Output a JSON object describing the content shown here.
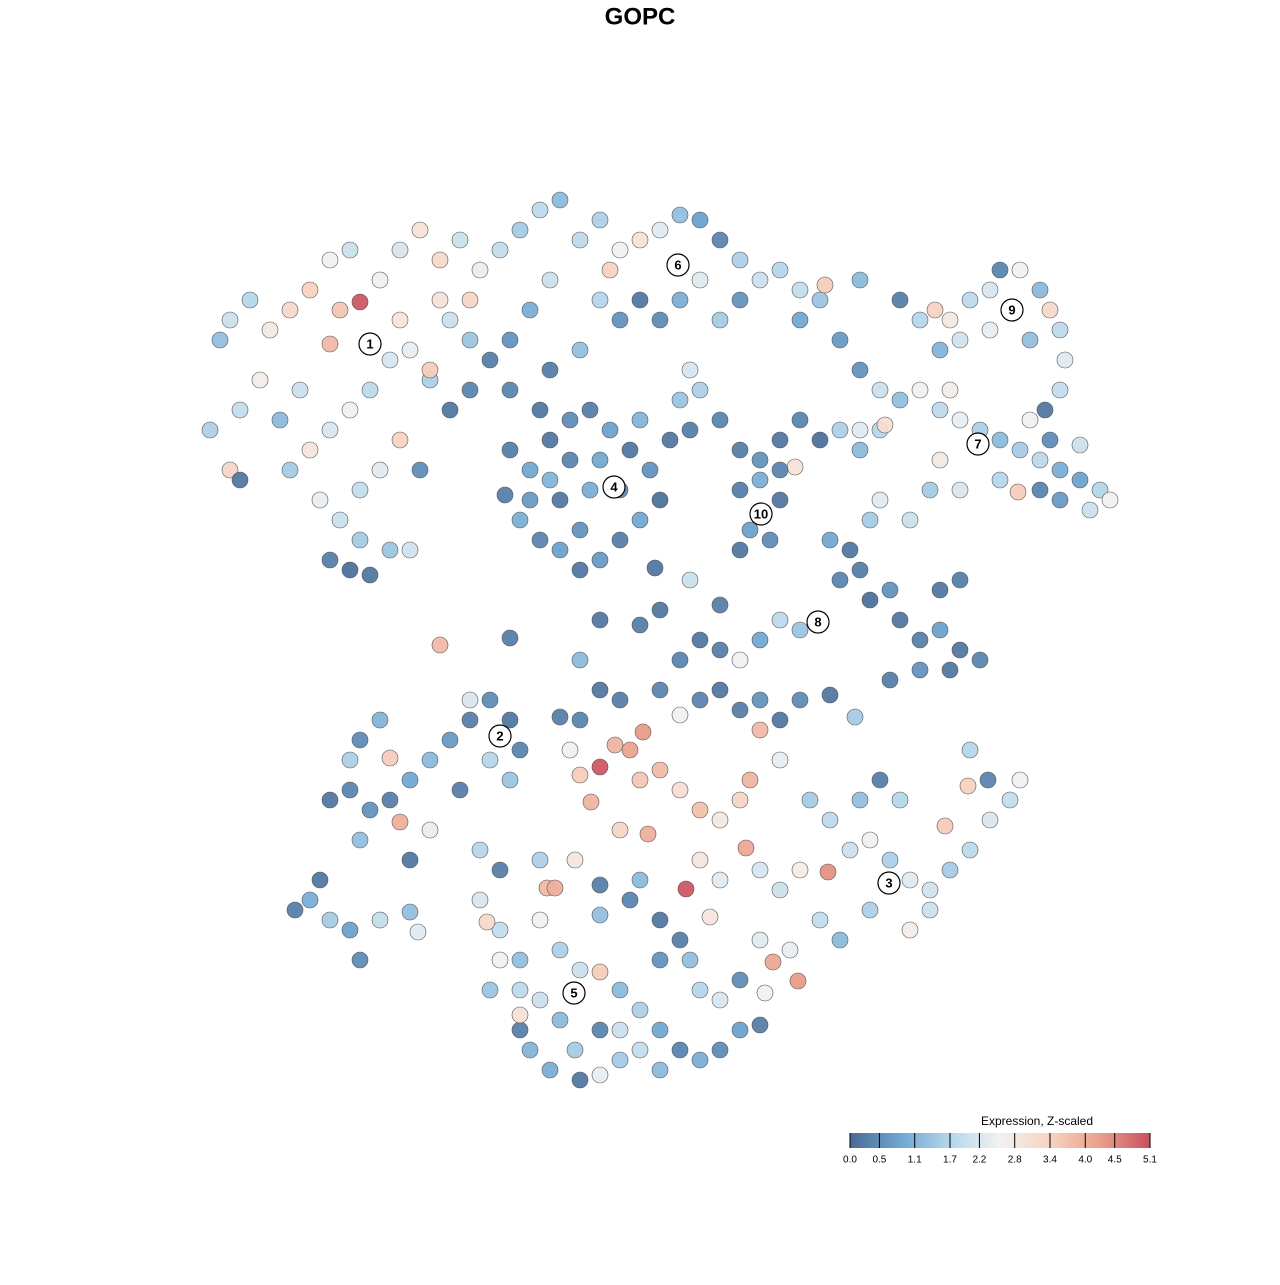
{
  "chart_data": {
    "type": "scatter",
    "title": "GOPC",
    "xlim": [
      0,
      1280
    ],
    "ylim": [
      1280,
      0
    ],
    "x": [
      220,
      230,
      250,
      270,
      290,
      310,
      330,
      350,
      360,
      340,
      330,
      380,
      400,
      420,
      440,
      460,
      480,
      500,
      520,
      540,
      560,
      550,
      530,
      510,
      490,
      470,
      450,
      430,
      410,
      400,
      390,
      370,
      350,
      330,
      310,
      290,
      280,
      300,
      260,
      240,
      210,
      230,
      240,
      320,
      340,
      360,
      330,
      350,
      370,
      390,
      410,
      400,
      420,
      380,
      360,
      450,
      470,
      440,
      470,
      430,
      580,
      600,
      620,
      640,
      660,
      680,
      700,
      720,
      740,
      760,
      780,
      800,
      820,
      825,
      700,
      680,
      660,
      640,
      620,
      600,
      610,
      720,
      740,
      800,
      840,
      690,
      700,
      680,
      580,
      550,
      540,
      510,
      900,
      920,
      935,
      950,
      970,
      990,
      1000,
      1020,
      1040,
      1050,
      1060,
      1030,
      990,
      960,
      940,
      1065,
      1060,
      1045,
      860,
      860,
      880,
      900,
      920,
      940,
      950,
      960,
      980,
      1000,
      1020,
      1040,
      1060,
      1080,
      1100,
      1110,
      1090,
      1060,
      1040,
      1018,
      1000,
      1030,
      1050,
      1080,
      880,
      860,
      840,
      885,
      940,
      860,
      510,
      530,
      550,
      570,
      590,
      610,
      630,
      650,
      660,
      640,
      620,
      600,
      580,
      560,
      540,
      520,
      505,
      530,
      560,
      590,
      620,
      600,
      570,
      550,
      580,
      640,
      670,
      690,
      720,
      740,
      760,
      780,
      800,
      795,
      820,
      740,
      760,
      780,
      750,
      770,
      740,
      780,
      830,
      850,
      860,
      840,
      870,
      890,
      900,
      920,
      940,
      960,
      980,
      950,
      920,
      890,
      940,
      960,
      870,
      880,
      910,
      930,
      960,
      800,
      780,
      760,
      740,
      720,
      700,
      680,
      440,
      510,
      580,
      600,
      640,
      690,
      720,
      660,
      655,
      330,
      350,
      370,
      390,
      410,
      430,
      450,
      470,
      490,
      510,
      520,
      510,
      490,
      380,
      360,
      350,
      390,
      400,
      430,
      410,
      360,
      460,
      480,
      470,
      295,
      310,
      330,
      350,
      360,
      380,
      410,
      418,
      320,
      570,
      580,
      600,
      615,
      630,
      640,
      660,
      680,
      700,
      720,
      740,
      750,
      760,
      780,
      643,
      591,
      620,
      648,
      686,
      700,
      720,
      746,
      760,
      780,
      800,
      828,
      850,
      870,
      890,
      910,
      930,
      950,
      970,
      990,
      1010,
      1020,
      968,
      945,
      900,
      880,
      860,
      830,
      810,
      820,
      798,
      773,
      790,
      760,
      840,
      870,
      910,
      930,
      700,
      720,
      740,
      760,
      780,
      800,
      830,
      855,
      620,
      660,
      680,
      600,
      580,
      560,
      970,
      988,
      480,
      500,
      520,
      540,
      547,
      555,
      560,
      580,
      600,
      620,
      640,
      660,
      680,
      700,
      720,
      740,
      760,
      575,
      560,
      540,
      520,
      530,
      550,
      580,
      600,
      620,
      640,
      660,
      600,
      620,
      500,
      520,
      490,
      600,
      630,
      660,
      680,
      690,
      700,
      720,
      740,
      765,
      520,
      487,
      500,
      540,
      575,
      600,
      640,
      710,
      660
    ],
    "y": [
      340,
      320,
      300,
      330,
      310,
      290,
      260,
      250,
      302,
      310,
      344,
      280,
      250,
      230,
      260,
      240,
      270,
      250,
      230,
      210,
      200,
      280,
      310,
      340,
      360,
      390,
      410,
      380,
      350,
      320,
      360,
      390,
      410,
      430,
      450,
      470,
      420,
      390,
      380,
      410,
      430,
      470,
      480,
      500,
      520,
      540,
      560,
      570,
      575,
      550,
      550,
      440,
      470,
      470,
      490,
      320,
      300,
      300,
      340,
      370,
      240,
      220,
      250,
      240,
      230,
      215,
      220,
      240,
      260,
      280,
      270,
      290,
      300,
      285,
      280,
      300,
      320,
      300,
      320,
      300,
      270,
      320,
      300,
      320,
      340,
      370,
      390,
      400,
      350,
      370,
      410,
      390,
      300,
      320,
      310,
      320,
      300,
      290,
      270,
      270,
      290,
      310,
      330,
      340,
      330,
      340,
      350,
      360,
      390,
      410,
      280,
      370,
      390,
      400,
      390,
      410,
      390,
      420,
      430,
      440,
      450,
      460,
      470,
      480,
      490,
      500,
      510,
      500,
      490,
      492,
      480,
      420,
      440,
      445,
      430,
      430,
      430,
      425,
      460,
      450,
      450,
      470,
      440,
      420,
      410,
      430,
      450,
      470,
      500,
      520,
      540,
      560,
      570,
      550,
      540,
      520,
      495,
      500,
      500,
      490,
      490,
      460,
      460,
      480,
      530,
      420,
      440,
      430,
      420,
      450,
      460,
      440,
      420,
      467,
      440,
      490,
      480,
      500,
      530,
      540,
      550,
      470,
      540,
      550,
      570,
      580,
      600,
      590,
      620,
      640,
      630,
      650,
      660,
      670,
      670,
      680,
      590,
      580,
      520,
      500,
      520,
      490,
      490,
      630,
      620,
      640,
      660,
      650,
      640,
      660,
      645,
      638,
      660,
      620,
      625,
      580,
      605,
      610,
      568,
      800,
      790,
      810,
      800,
      780,
      760,
      740,
      720,
      700,
      720,
      750,
      780,
      760,
      720,
      740,
      760,
      758,
      822,
      830,
      860,
      840,
      790,
      850,
      700,
      910,
      900,
      920,
      930,
      960,
      920,
      912,
      932,
      880,
      750,
      775,
      767,
      745,
      750,
      780,
      770,
      790,
      810,
      820,
      800,
      780,
      730,
      760,
      732,
      802,
      830,
      834,
      889,
      860,
      880,
      848,
      870,
      890,
      870,
      872,
      850,
      840,
      860,
      880,
      890,
      870,
      850,
      820,
      800,
      780,
      786,
      826,
      800,
      780,
      800,
      820,
      800,
      920,
      981,
      962,
      950,
      940,
      940,
      910,
      930,
      910,
      700,
      690,
      710,
      700,
      720,
      700,
      695,
      717,
      700,
      690,
      715,
      690,
      720,
      717,
      750,
      780,
      900,
      930,
      960,
      920,
      888,
      888,
      950,
      970,
      972,
      990,
      1010,
      1030,
      1050,
      1060,
      1050,
      1030,
      1025,
      1050,
      1020,
      1000,
      1030,
      1050,
      1070,
      1080,
      1075,
      1060,
      1050,
      1070,
      1030,
      1030,
      960,
      990,
      990,
      915,
      900,
      920,
      940,
      960,
      990,
      1000,
      980,
      993,
      1015,
      922,
      870,
      860,
      860,
      885,
      880,
      917,
      960
    ],
    "values": [
      1.3,
      2.0,
      1.7,
      2.8,
      3.2,
      3.4,
      2.5,
      2.0,
      5.0,
      3.6,
      3.8,
      2.6,
      2.2,
      3.0,
      3.2,
      2.0,
      2.4,
      1.9,
      1.5,
      1.8,
      1.2,
      2.0,
      1.0,
      0.6,
      0.3,
      0.4,
      0.2,
      1.6,
      2.4,
      2.9,
      2.2,
      1.8,
      2.6,
      2.2,
      2.9,
      1.5,
      1.2,
      2.0,
      2.7,
      1.9,
      1.6,
      3.3,
      0.2,
      2.4,
      2.0,
      1.5,
      0.3,
      0.1,
      0.2,
      1.4,
      2.1,
      3.4,
      0.5,
      2.3,
      1.9,
      2.0,
      3.3,
      3.0,
      1.4,
      3.5,
      1.8,
      1.6,
      2.6,
      3.0,
      2.3,
      1.3,
      0.8,
      0.4,
      1.6,
      2.0,
      1.7,
      1.9,
      1.4,
      3.5,
      2.3,
      1.0,
      0.5,
      0.2,
      0.6,
      1.7,
      3.4,
      1.5,
      0.6,
      0.9,
      0.7,
      2.2,
      1.6,
      1.4,
      1.3,
      0.3,
      0.2,
      0.4,
      0.3,
      1.7,
      3.4,
      2.8,
      1.8,
      2.2,
      0.4,
      2.5,
      1.2,
      3.2,
      1.8,
      1.3,
      2.4,
      2.1,
      1.1,
      2.3,
      1.9,
      0.2,
      1.2,
      0.6,
      2.0,
      1.3,
      2.6,
      1.8,
      2.7,
      2.4,
      1.6,
      1.2,
      1.5,
      1.8,
      1.0,
      0.8,
      1.7,
      2.5,
      2.0,
      0.7,
      0.4,
      3.5,
      1.7,
      2.5,
      0.5,
      2.0,
      1.7,
      2.3,
      1.6,
      3.1,
      2.8,
      1.2,
      0.3,
      0.9,
      0.2,
      0.5,
      0.3,
      0.8,
      0.2,
      0.6,
      0.1,
      0.9,
      0.3,
      0.7,
      0.2,
      0.8,
      0.4,
      1.0,
      0.3,
      0.7,
      0.2,
      1.0,
      0.5,
      0.9,
      0.4,
      1.1,
      0.6,
      1.1,
      0.2,
      0.3,
      0.4,
      0.3,
      0.6,
      0.2,
      0.4,
      3.0,
      0.1,
      0.3,
      1.0,
      0.2,
      0.8,
      0.5,
      0.2,
      0.4,
      0.9,
      0.2,
      0.3,
      0.4,
      0.1,
      0.6,
      0.2,
      0.3,
      0.8,
      0.2,
      0.4,
      0.2,
      0.6,
      0.3,
      0.2,
      0.3,
      1.5,
      2.3,
      2.0,
      1.5,
      2.2,
      1.4,
      1.8,
      0.9,
      2.5,
      0.3,
      0.2,
      0.4,
      3.8,
      0.3,
      1.2,
      0.2,
      0.3,
      2.0,
      0.3,
      0.2,
      0.2,
      0.2,
      0.4,
      0.6,
      0.3,
      0.9,
      1.2,
      0.7,
      0.3,
      0.5,
      0.2,
      0.4,
      1.4,
      1.7,
      1.1,
      0.5,
      1.6,
      3.5,
      4.0,
      2.4,
      0.2,
      1.3,
      0.3,
      1.7,
      2.2,
      0.3,
      1.0,
      1.5,
      0.8,
      0.5,
      1.9,
      1.3,
      2.3,
      0.2,
      2.5,
      3.5,
      5.0,
      3.9,
      4.2,
      3.6,
      3.8,
      3.1,
      3.7,
      2.8,
      3.3,
      3.9,
      3.8,
      2.4,
      4.3,
      3.9,
      3.3,
      4.0,
      5.0,
      2.9,
      2.3,
      4.1,
      2.2,
      2.0,
      2.7,
      4.4,
      2.0,
      2.6,
      1.6,
      2.3,
      2.1,
      1.5,
      1.8,
      2.2,
      1.9,
      2.5,
      3.4,
      3.5,
      1.7,
      0.3,
      1.3,
      1.8,
      1.5,
      1.9,
      4.3,
      4.1,
      2.4,
      2.3,
      1.2,
      1.6,
      2.7,
      2.0,
      0.4,
      0.2,
      0.3,
      0.6,
      0.2,
      0.5,
      0.2,
      1.5,
      0.3,
      0.4,
      2.5,
      0.2,
      0.4,
      0.3,
      1.7,
      0.4,
      2.2,
      1.9,
      1.3,
      2.5,
      3.8,
      4.0,
      1.6,
      2.0,
      3.5,
      1.2,
      1.6,
      0.9,
      0.4,
      1.0,
      0.5,
      0.8,
      0.3,
      1.5,
      1.2,
      2.0,
      0.3,
      1.1,
      1.0,
      0.2,
      2.4,
      1.5,
      1.9,
      1.2,
      0.4,
      2.0,
      2.6,
      1.8,
      1.4,
      1.3,
      0.4,
      0.2,
      0.3,
      1.3,
      1.7,
      2.2,
      0.5,
      2.6,
      3.0,
      3.2,
      0.3,
      1.6,
      2.9,
      0.3,
      1.2,
      2.9,
      0.6
    ],
    "clusters": {
      "labels": [
        "1",
        "2",
        "3",
        "4",
        "5",
        "6",
        "7",
        "8",
        "9",
        "10"
      ],
      "x": [
        370,
        500,
        889,
        614,
        574,
        678,
        978,
        818,
        1012,
        761
      ],
      "y": [
        344,
        736,
        883,
        487,
        993,
        265,
        444,
        622,
        310,
        514
      ]
    },
    "colorbar": {
      "title": "Expression, Z-scaled",
      "lim": [
        0,
        5.1
      ],
      "ticks": [
        {
          "value": 0,
          "label": "0.0"
        },
        0.5,
        1.1,
        1.7,
        2.2,
        2.8,
        3.4,
        {
          "value": 4,
          "label": "4.0"
        },
        4.5,
        5.1
      ],
      "colors": [
        "#4a6a94",
        "#6ea6d0",
        "#b5d6ea",
        "#f2f2f2",
        "#f7d2c0",
        "#eaa08c",
        "#c9505f"
      ]
    }
  }
}
